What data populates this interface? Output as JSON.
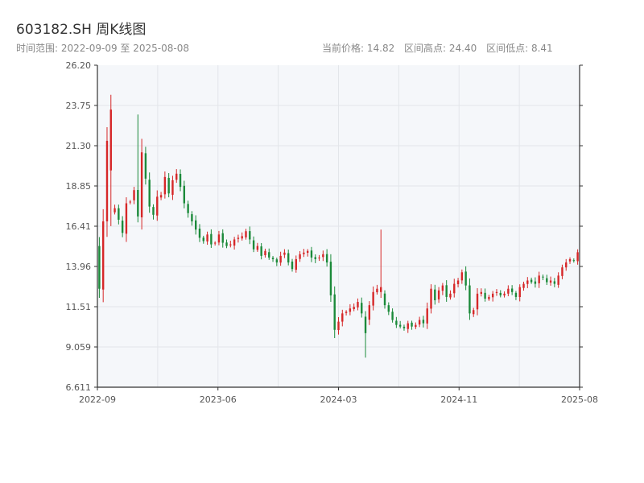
{
  "header": {
    "title": "603182.SH 周K线图",
    "range_label": "时间范围: 2022-09-09 至 2025-08-08",
    "current_price_label": "当前价格: 14.82",
    "range_high_label": "区间高点: 24.40",
    "range_low_label": "区间低点: 8.41"
  },
  "colors": {
    "up": "#d62728",
    "down": "#1b8a3a",
    "plot_bg": "#f5f7fa",
    "grid": "#e3e6ea",
    "axis": "#333333"
  },
  "chart_data": {
    "type": "candlestick",
    "title": "603182.SH 周K线图",
    "ylim": [
      6.611,
      26.2
    ],
    "y_ticks": [
      "26.20",
      "23.75",
      "21.30",
      "18.85",
      "16.41",
      "13.96",
      "11.51",
      "9.059",
      "6.611"
    ],
    "x_ticks": [
      "2022-09",
      "2023-06",
      "2024-03",
      "2024-11",
      "2025-08"
    ],
    "grid": true,
    "close_path": [
      12.6,
      16.7,
      21.6,
      17.2,
      17.5,
      16.8,
      16.0,
      17.8,
      17.9,
      18.6,
      17.0,
      20.9,
      19.3,
      17.6,
      17.1,
      18.2,
      18.3,
      19.4,
      18.4,
      19.2,
      19.6,
      18.8,
      17.8,
      17.2,
      16.7,
      16.2,
      15.7,
      15.5,
      15.9,
      15.3,
      15.4,
      15.9,
      15.4,
      15.2,
      15.3,
      15.6,
      15.7,
      15.8,
      16.1,
      15.6,
      15.0,
      15.2,
      14.6,
      14.9,
      14.5,
      14.4,
      14.2,
      14.6,
      14.8,
      14.2,
      13.8,
      14.4,
      14.7,
      14.8,
      14.9,
      14.5,
      14.4,
      14.5,
      14.7,
      14.2,
      12.2,
      10.1,
      10.6,
      11.1,
      11.2,
      11.4,
      11.5,
      11.8,
      11.1,
      10.7,
      11.6,
      12.4,
      12.6,
      12.3,
      11.6,
      11.2,
      10.7,
      10.4,
      10.3,
      10.2,
      10.5,
      10.3,
      10.4,
      10.7,
      10.5,
      11.4,
      12.6,
      11.9,
      12.5,
      12.8,
      12.1,
      12.3,
      12.9,
      13.1,
      13.6,
      12.8,
      11.1,
      11.3,
      12.3,
      12.4,
      12.0,
      12.1,
      12.3,
      12.4,
      12.2,
      12.3,
      12.6,
      12.4,
      12.1,
      12.7,
      12.9,
      13.1,
      13.0,
      12.9,
      13.4,
      13.3,
      13.0,
      13.1,
      12.9,
      13.4,
      13.9,
      14.2,
      14.4,
      14.3,
      14.82
    ],
    "current_price": 14.82,
    "range_high": 24.4,
    "range_low": 8.41
  }
}
